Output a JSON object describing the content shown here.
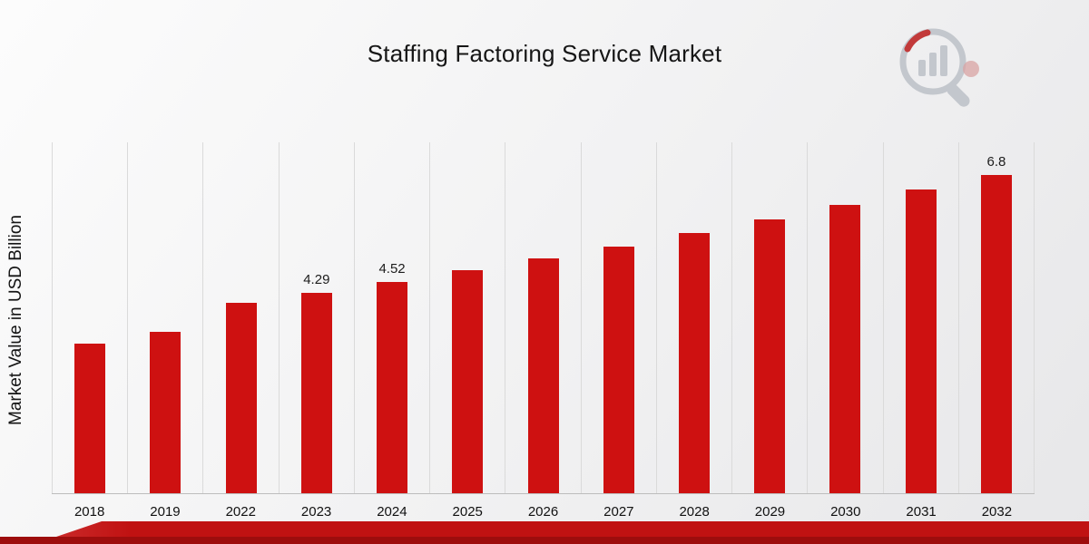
{
  "title": "Staffing Factoring Service Market",
  "ylabel": "Market Value in USD Billion",
  "colors": {
    "bar": "#ce1111",
    "ribbon_main": "#c01212",
    "ribbon_dark": "#9d0d0d",
    "gridline": "#dadada",
    "logo_gray": "#c3c7cd"
  },
  "chart_data": {
    "type": "bar",
    "title": "Staffing Factoring Service Market",
    "xlabel": "",
    "ylabel": "Market Value in USD Billion",
    "categories": [
      "2018",
      "2019",
      "2022",
      "2023",
      "2024",
      "2025",
      "2026",
      "2027",
      "2028",
      "2029",
      "2030",
      "2031",
      "2032"
    ],
    "values": [
      3.2,
      3.45,
      4.07,
      4.29,
      4.52,
      4.76,
      5.01,
      5.28,
      5.56,
      5.85,
      6.17,
      6.49,
      6.8
    ],
    "bar_labels": {
      "2023": "4.29",
      "2024": "4.52",
      "2032": "6.8"
    },
    "ylim": [
      0,
      7.5
    ],
    "grid": "vertical",
    "legend": "none",
    "bar_color": "#ce1111"
  }
}
